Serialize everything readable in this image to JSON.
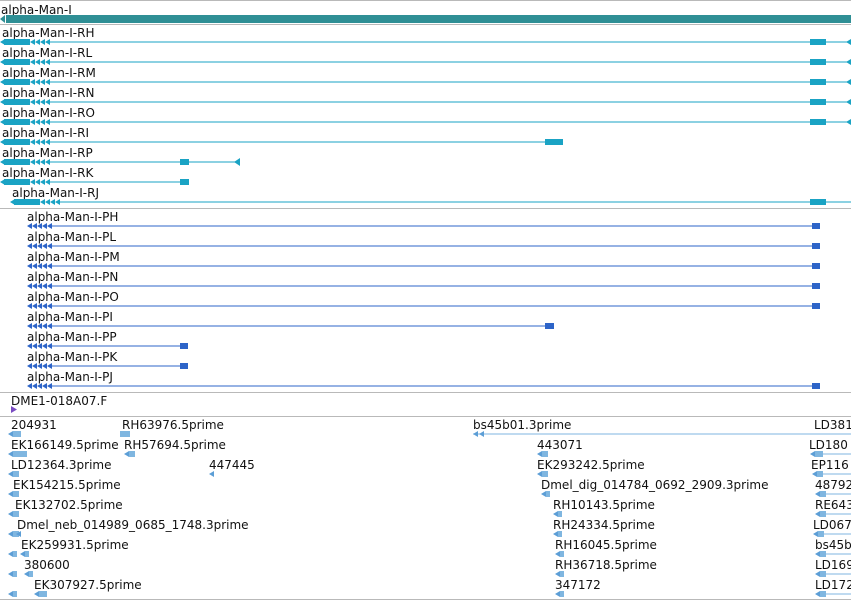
{
  "gene": {
    "name": "alpha-Man-I"
  },
  "colors": {
    "gene": "#2f8f95",
    "transcript": "#1aa3c4",
    "protein": "#2d64c8",
    "est": "#7fb6e0",
    "est_dark": "#5c9ed6",
    "clone": "#7a4cc2",
    "separator": "#b9b9b9"
  },
  "transcripts": [
    {
      "label": "alpha-Man-I-RH"
    },
    {
      "label": "alpha-Man-I-RL"
    },
    {
      "label": "alpha-Man-I-RM"
    },
    {
      "label": "alpha-Man-I-RN"
    },
    {
      "label": "alpha-Man-I-RO"
    },
    {
      "label": "alpha-Man-I-RI"
    },
    {
      "label": "alpha-Man-I-RP"
    },
    {
      "label": "alpha-Man-I-RK"
    },
    {
      "label": "alpha-Man-I-RJ"
    }
  ],
  "proteins": [
    {
      "label": "alpha-Man-I-PH"
    },
    {
      "label": "alpha-Man-I-PL"
    },
    {
      "label": "alpha-Man-I-PM"
    },
    {
      "label": "alpha-Man-I-PN"
    },
    {
      "label": "alpha-Man-I-PO"
    },
    {
      "label": "alpha-Man-I-PI"
    },
    {
      "label": "alpha-Man-I-PP"
    },
    {
      "label": "alpha-Man-I-PK"
    },
    {
      "label": "alpha-Man-I-PJ"
    }
  ],
  "clone": {
    "label": "DME1-018A07.F"
  },
  "ests": [
    {
      "label": "204931"
    },
    {
      "label": "RH63976.5prime"
    },
    {
      "label": "bs45b01.3prime"
    },
    {
      "label": "LD381"
    },
    {
      "label": "EK166149.5prime"
    },
    {
      "label": "RH57694.5prime"
    },
    {
      "label": "443071"
    },
    {
      "label": "LD180"
    },
    {
      "label": "LD12364.3prime"
    },
    {
      "label": "447445"
    },
    {
      "label": "EK293242.5prime"
    },
    {
      "label": "EP116"
    },
    {
      "label": "EK154215.5prime"
    },
    {
      "label": "Dmel_dig_014784_0692_2909.3prime"
    },
    {
      "label": "48792"
    },
    {
      "label": "EK132702.5prime"
    },
    {
      "label": "RH10143.5prime"
    },
    {
      "label": "RE643"
    },
    {
      "label": "Dmel_neb_014989_0685_1748.3prime"
    },
    {
      "label": "RH24334.5prime"
    },
    {
      "label": "LD067"
    },
    {
      "label": "EK259931.5prime"
    },
    {
      "label": "RH16045.5prime"
    },
    {
      "label": "bs45b"
    },
    {
      "label": "380600"
    },
    {
      "label": "RH36718.5prime"
    },
    {
      "label": "LD169"
    },
    {
      "label": "EK307927.5prime"
    },
    {
      "label": "347172"
    },
    {
      "label": "LD172"
    }
  ]
}
